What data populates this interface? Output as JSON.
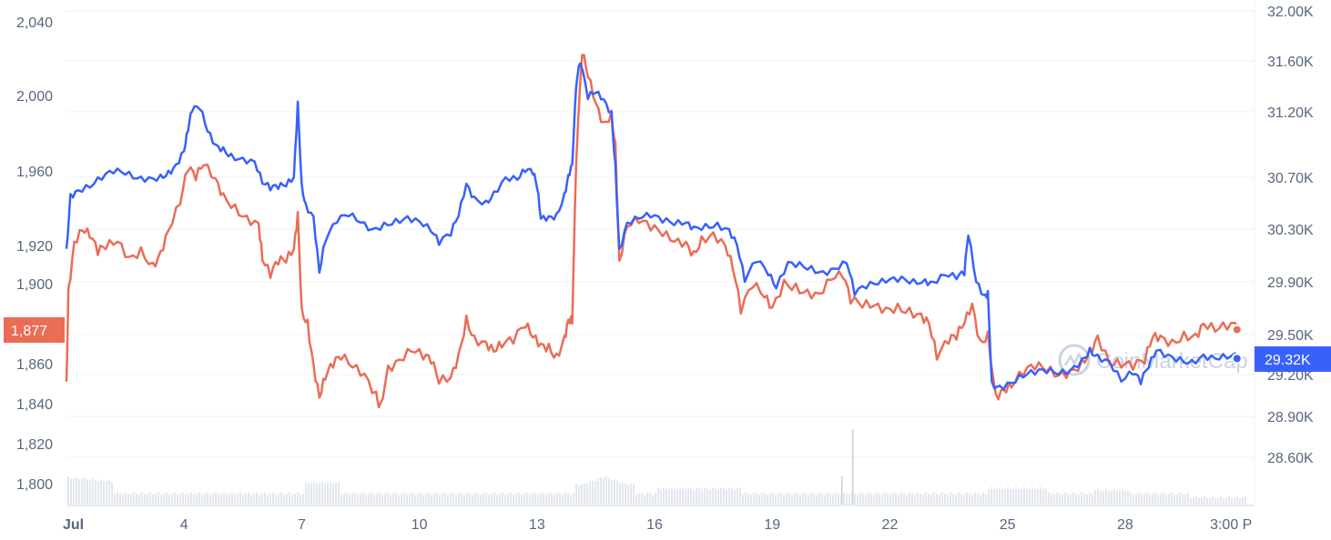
{
  "chart_data": {
    "type": "line",
    "title": "",
    "grid": true,
    "legend": "none",
    "x_ticks": [
      "Jul",
      "4",
      "7",
      "10",
      "13",
      "16",
      "19",
      "22",
      "25",
      "28",
      "3:00 P"
    ],
    "x_tick_pos": [
      1,
      4,
      7,
      10,
      13,
      16,
      19,
      22,
      25,
      28,
      31
    ],
    "x_range": [
      1,
      31.3
    ],
    "left_axis": {
      "ticks": [
        "2,040",
        "2,000",
        "1,960",
        "1,920",
        "1,900",
        "1,860",
        "1,840",
        "1,820",
        "1,800"
      ],
      "tick_values": [
        2040,
        2000,
        1960,
        1920,
        1900,
        1860,
        1840,
        1820,
        1800
      ],
      "range": [
        1790,
        2050
      ]
    },
    "right_axis": {
      "ticks": [
        "32.00K",
        "31.60K",
        "31.20K",
        "30.70K",
        "30.30K",
        "29.90K",
        "29.50K",
        "29.20K",
        "28.90K",
        "28.60K"
      ],
      "tick_values": [
        32000,
        31600,
        31200,
        30700,
        30300,
        29900,
        29500,
        29200,
        28900,
        28600
      ],
      "range": [
        28450,
        32150
      ]
    },
    "series": [
      {
        "axis": "left",
        "color": "#ea6d57",
        "badge": "1,877",
        "points": [
          [
            1.0,
            1851
          ],
          [
            1.05,
            1898
          ],
          [
            1.2,
            1922
          ],
          [
            1.4,
            1928
          ],
          [
            1.6,
            1924
          ],
          [
            1.8,
            1915
          ],
          [
            2.0,
            1918
          ],
          [
            2.3,
            1922
          ],
          [
            2.6,
            1914
          ],
          [
            2.9,
            1919
          ],
          [
            3.2,
            1911
          ],
          [
            3.4,
            1917
          ],
          [
            3.6,
            1928
          ],
          [
            3.9,
            1942
          ],
          [
            4.1,
            1960
          ],
          [
            4.3,
            1955
          ],
          [
            4.5,
            1963
          ],
          [
            4.8,
            1956
          ],
          [
            5.0,
            1948
          ],
          [
            5.3,
            1942
          ],
          [
            5.6,
            1936
          ],
          [
            5.9,
            1932
          ],
          [
            6.0,
            1912
          ],
          [
            6.2,
            1903
          ],
          [
            6.4,
            1910
          ],
          [
            6.6,
            1911
          ],
          [
            6.8,
            1918
          ],
          [
            6.9,
            1938
          ],
          [
            7.0,
            1888
          ],
          [
            7.15,
            1882
          ],
          [
            7.3,
            1860
          ],
          [
            7.45,
            1843
          ],
          [
            7.6,
            1852
          ],
          [
            7.8,
            1858
          ],
          [
            8.0,
            1862
          ],
          [
            8.3,
            1858
          ],
          [
            8.6,
            1855
          ],
          [
            8.9,
            1846
          ],
          [
            9.0,
            1840
          ],
          [
            9.2,
            1859
          ],
          [
            9.5,
            1862
          ],
          [
            9.8,
            1866
          ],
          [
            10.1,
            1862
          ],
          [
            10.3,
            1860
          ],
          [
            10.5,
            1850
          ],
          [
            10.8,
            1853
          ],
          [
            11.0,
            1865
          ],
          [
            11.2,
            1884
          ],
          [
            11.4,
            1874
          ],
          [
            11.7,
            1871
          ],
          [
            11.9,
            1866
          ],
          [
            12.1,
            1868
          ],
          [
            12.4,
            1870
          ],
          [
            12.7,
            1878
          ],
          [
            12.9,
            1873
          ],
          [
            13.1,
            1870
          ],
          [
            13.3,
            1870
          ],
          [
            13.5,
            1865
          ],
          [
            13.7,
            1874
          ],
          [
            13.8,
            1882
          ],
          [
            13.9,
            1880
          ],
          [
            14.0,
            1964
          ],
          [
            14.15,
            2022
          ],
          [
            14.3,
            2010
          ],
          [
            14.5,
            1996
          ],
          [
            14.7,
            1986
          ],
          [
            14.9,
            1992
          ],
          [
            15.0,
            1975
          ],
          [
            15.1,
            1912
          ],
          [
            15.3,
            1930
          ],
          [
            15.6,
            1932
          ],
          [
            15.9,
            1928
          ],
          [
            16.2,
            1925
          ],
          [
            16.5,
            1922
          ],
          [
            16.8,
            1922
          ],
          [
            17.0,
            1917
          ],
          [
            17.2,
            1925
          ],
          [
            17.5,
            1927
          ],
          [
            17.8,
            1920
          ],
          [
            18.0,
            1907
          ],
          [
            18.2,
            1885
          ],
          [
            18.5,
            1898
          ],
          [
            18.8,
            1893
          ],
          [
            19.0,
            1888
          ],
          [
            19.3,
            1902
          ],
          [
            19.6,
            1900
          ],
          [
            19.9,
            1897
          ],
          [
            20.2,
            1895
          ],
          [
            20.5,
            1902
          ],
          [
            20.8,
            1903
          ],
          [
            21.0,
            1890
          ],
          [
            21.3,
            1888
          ],
          [
            21.6,
            1889
          ],
          [
            21.9,
            1888
          ],
          [
            22.2,
            1890
          ],
          [
            22.5,
            1888
          ],
          [
            22.8,
            1885
          ],
          [
            23.0,
            1880
          ],
          [
            23.2,
            1862
          ],
          [
            23.5,
            1870
          ],
          [
            23.7,
            1872
          ],
          [
            23.9,
            1880
          ],
          [
            24.1,
            1890
          ],
          [
            24.3,
            1872
          ],
          [
            24.5,
            1876
          ],
          [
            24.7,
            1845
          ],
          [
            24.9,
            1847
          ],
          [
            25.1,
            1848
          ],
          [
            25.4,
            1854
          ],
          [
            25.7,
            1857
          ],
          [
            26.0,
            1856
          ],
          [
            26.3,
            1854
          ],
          [
            26.6,
            1857
          ],
          [
            26.9,
            1862
          ],
          [
            27.1,
            1868
          ],
          [
            27.3,
            1874
          ],
          [
            27.6,
            1860
          ],
          [
            27.9,
            1858
          ],
          [
            28.2,
            1857
          ],
          [
            28.5,
            1860
          ],
          [
            28.7,
            1873
          ],
          [
            28.9,
            1874
          ],
          [
            29.2,
            1872
          ],
          [
            29.5,
            1876
          ],
          [
            29.8,
            1875
          ],
          [
            30.0,
            1880
          ],
          [
            30.3,
            1876
          ],
          [
            30.6,
            1877
          ],
          [
            30.9,
            1877
          ]
        ]
      },
      {
        "axis": "right",
        "color": "#3861fb",
        "badge": "29.32K",
        "points": [
          [
            1.0,
            30150
          ],
          [
            1.1,
            30570
          ],
          [
            1.3,
            30600
          ],
          [
            1.6,
            30620
          ],
          [
            1.9,
            30680
          ],
          [
            2.2,
            30730
          ],
          [
            2.5,
            30720
          ],
          [
            2.8,
            30690
          ],
          [
            3.1,
            30700
          ],
          [
            3.4,
            30720
          ],
          [
            3.6,
            30750
          ],
          [
            3.8,
            30800
          ],
          [
            4.0,
            30900
          ],
          [
            4.1,
            31050
          ],
          [
            4.2,
            31200
          ],
          [
            4.4,
            31220
          ],
          [
            4.6,
            31050
          ],
          [
            4.8,
            30950
          ],
          [
            5.0,
            30930
          ],
          [
            5.2,
            30880
          ],
          [
            5.5,
            30850
          ],
          [
            5.8,
            30820
          ],
          [
            6.0,
            30650
          ],
          [
            6.2,
            30600
          ],
          [
            6.4,
            30610
          ],
          [
            6.6,
            30630
          ],
          [
            6.8,
            30700
          ],
          [
            6.9,
            31280
          ],
          [
            7.0,
            30650
          ],
          [
            7.1,
            30500
          ],
          [
            7.3,
            30400
          ],
          [
            7.45,
            29970
          ],
          [
            7.6,
            30200
          ],
          [
            7.9,
            30350
          ],
          [
            8.2,
            30400
          ],
          [
            8.5,
            30350
          ],
          [
            8.8,
            30300
          ],
          [
            9.1,
            30350
          ],
          [
            9.4,
            30380
          ],
          [
            9.7,
            30400
          ],
          [
            10.0,
            30360
          ],
          [
            10.3,
            30280
          ],
          [
            10.5,
            30180
          ],
          [
            10.8,
            30250
          ],
          [
            11.0,
            30400
          ],
          [
            11.2,
            30650
          ],
          [
            11.4,
            30550
          ],
          [
            11.7,
            30520
          ],
          [
            11.9,
            30590
          ],
          [
            12.2,
            30700
          ],
          [
            12.5,
            30680
          ],
          [
            12.7,
            30740
          ],
          [
            12.9,
            30720
          ],
          [
            13.0,
            30620
          ],
          [
            13.1,
            30380
          ],
          [
            13.3,
            30400
          ],
          [
            13.5,
            30420
          ],
          [
            13.7,
            30580
          ],
          [
            13.8,
            30720
          ],
          [
            13.9,
            30800
          ],
          [
            14.0,
            31400
          ],
          [
            14.1,
            31580
          ],
          [
            14.3,
            31300
          ],
          [
            14.5,
            31350
          ],
          [
            14.7,
            31300
          ],
          [
            14.9,
            31200
          ],
          [
            15.0,
            30800
          ],
          [
            15.1,
            30150
          ],
          [
            15.3,
            30350
          ],
          [
            15.6,
            30380
          ],
          [
            15.9,
            30390
          ],
          [
            16.2,
            30350
          ],
          [
            16.5,
            30330
          ],
          [
            16.8,
            30350
          ],
          [
            17.0,
            30320
          ],
          [
            17.3,
            30340
          ],
          [
            17.6,
            30350
          ],
          [
            17.9,
            30300
          ],
          [
            18.1,
            30180
          ],
          [
            18.3,
            29900
          ],
          [
            18.6,
            30050
          ],
          [
            18.9,
            29950
          ],
          [
            19.1,
            29850
          ],
          [
            19.4,
            30050
          ],
          [
            19.7,
            30050
          ],
          [
            20.0,
            30020
          ],
          [
            20.3,
            29980
          ],
          [
            20.6,
            30000
          ],
          [
            20.9,
            30040
          ],
          [
            21.1,
            29800
          ],
          [
            21.4,
            29850
          ],
          [
            21.7,
            29880
          ],
          [
            22.0,
            29920
          ],
          [
            22.3,
            29940
          ],
          [
            22.6,
            29920
          ],
          [
            22.9,
            29920
          ],
          [
            23.1,
            29900
          ],
          [
            23.4,
            29950
          ],
          [
            23.7,
            29920
          ],
          [
            23.9,
            29950
          ],
          [
            24.0,
            30250
          ],
          [
            24.2,
            29900
          ],
          [
            24.4,
            29800
          ],
          [
            24.5,
            29830
          ],
          [
            24.6,
            29150
          ],
          [
            24.8,
            29120
          ],
          [
            25.1,
            29140
          ],
          [
            25.4,
            29180
          ],
          [
            25.7,
            29200
          ],
          [
            26.0,
            29210
          ],
          [
            26.3,
            29200
          ],
          [
            26.6,
            29230
          ],
          [
            26.9,
            29320
          ],
          [
            27.1,
            29400
          ],
          [
            27.3,
            29350
          ],
          [
            27.6,
            29300
          ],
          [
            27.9,
            29150
          ],
          [
            28.2,
            29200
          ],
          [
            28.4,
            29130
          ],
          [
            28.6,
            29250
          ],
          [
            28.8,
            29380
          ],
          [
            29.1,
            29350
          ],
          [
            29.4,
            29330
          ],
          [
            29.7,
            29310
          ],
          [
            30.0,
            29350
          ],
          [
            30.3,
            29320
          ],
          [
            30.6,
            29320
          ],
          [
            30.9,
            29320
          ]
        ]
      }
    ],
    "watermark": "CoinMarketCap"
  }
}
